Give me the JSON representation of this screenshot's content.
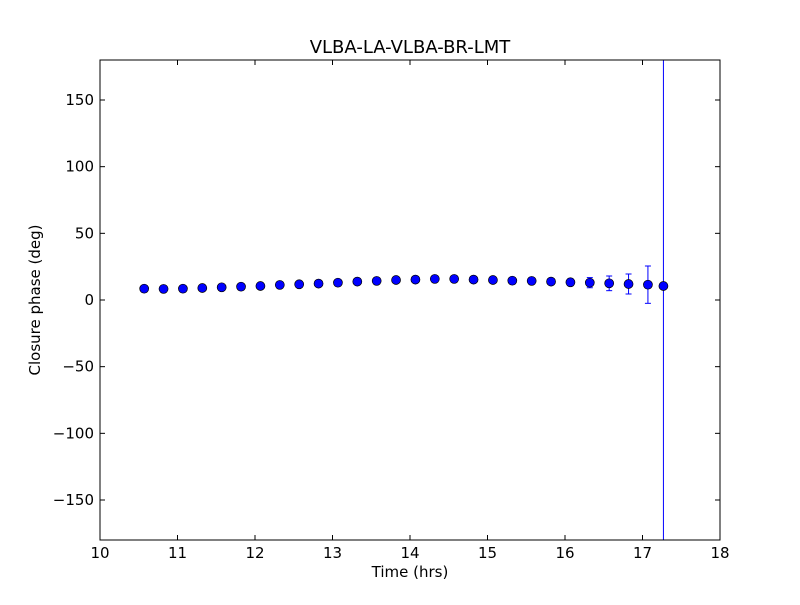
{
  "chart_data": {
    "type": "scatter",
    "title": "VLBA-LA-VLBA-BR-LMT",
    "xlabel": "Time (hrs)",
    "ylabel": "Closure phase (deg)",
    "xlim": [
      10,
      18
    ],
    "ylim": [
      -180,
      180
    ],
    "xticks": [
      "10",
      "11",
      "12",
      "13",
      "14",
      "15",
      "16",
      "17",
      "18"
    ],
    "yticks": [
      "−150",
      "−100",
      "−50",
      "0",
      "50",
      "100",
      "150"
    ],
    "xtick_values": [
      10,
      11,
      12,
      13,
      14,
      15,
      16,
      17,
      18
    ],
    "ytick_values": [
      -150,
      -100,
      -50,
      0,
      50,
      100,
      150
    ],
    "grid": false,
    "marker_color": "#0000ff",
    "errorbar_color": "#0000ff",
    "series": [
      {
        "x": [
          10.57,
          10.82,
          11.07,
          11.32,
          11.57,
          11.82,
          12.07,
          12.32,
          12.57,
          12.82,
          13.07,
          13.32,
          13.57,
          13.82,
          14.07,
          14.32,
          14.57,
          14.82,
          15.07,
          15.32,
          15.57,
          15.82,
          16.07,
          16.32,
          16.57,
          16.82,
          17.07,
          17.27
        ],
        "y": [
          8.5,
          8.3,
          8.5,
          9.0,
          9.5,
          10.0,
          10.5,
          11.3,
          11.8,
          12.3,
          13.0,
          13.8,
          14.3,
          15.0,
          15.3,
          15.8,
          15.8,
          15.3,
          15.0,
          14.5,
          14.3,
          13.8,
          13.3,
          13.0,
          12.5,
          12.0,
          11.5,
          10.5
        ],
        "yerr": [
          0.6,
          0.6,
          0.6,
          0.6,
          0.6,
          0.7,
          0.7,
          0.8,
          0.8,
          0.8,
          0.9,
          0.9,
          1.0,
          1.0,
          1.0,
          1.0,
          1.1,
          1.2,
          1.3,
          1.5,
          1.7,
          2.0,
          2.6,
          3.8,
          5.5,
          7.5,
          14.0,
          600
        ]
      }
    ]
  }
}
